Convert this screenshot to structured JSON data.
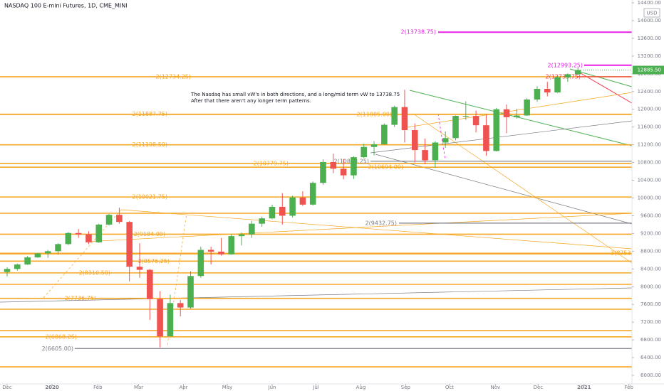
{
  "chart_data": {
    "type": "candlestick",
    "title": "NASDAQ 100 E-mini Futures, 1D, CME_MINI",
    "currency": "USD",
    "up_color": "#4caf50",
    "down_color": "#ef5350",
    "xlim": [
      -0.7,
      61.3
    ],
    "xticks": [
      {
        "value": 0,
        "label": "Dec"
      },
      {
        "value": 4.4,
        "label": "2020"
      },
      {
        "value": 8.9,
        "label": "Feb"
      },
      {
        "value": 12.9,
        "label": "Mar"
      },
      {
        "value": 17.3,
        "label": "Apr"
      },
      {
        "value": 21.6,
        "label": "May"
      },
      {
        "value": 26,
        "label": "Jun"
      },
      {
        "value": 30.3,
        "label": "Jul"
      },
      {
        "value": 34.7,
        "label": "Aug"
      },
      {
        "value": 39.1,
        "label": "Sep"
      },
      {
        "value": 43.4,
        "label": "Oct"
      },
      {
        "value": 47.9,
        "label": "Nov"
      },
      {
        "value": 52.1,
        "label": "Dec"
      },
      {
        "value": 56.6,
        "label": "2021"
      },
      {
        "value": 61,
        "label": "Feb"
      }
    ],
    "ylim": [
      5808,
      14464
    ],
    "yticks": [
      {
        "value": 6000,
        "label": "6000.00"
      },
      {
        "value": 6400,
        "label": "6400.00"
      },
      {
        "value": 6800,
        "label": "6800.00"
      },
      {
        "value": 7200,
        "label": "7200.00"
      },
      {
        "value": 7600,
        "label": "7600.00"
      },
      {
        "value": 8000,
        "label": "8000.00"
      },
      {
        "value": 8400,
        "label": "8400.00"
      },
      {
        "value": 8800,
        "label": "8800.00"
      },
      {
        "value": 9200,
        "label": "9200.00"
      },
      {
        "value": 9600,
        "label": "9600.00"
      },
      {
        "value": 10000,
        "label": "10000.00"
      },
      {
        "value": 10400,
        "label": "10400.00"
      },
      {
        "value": 10800,
        "label": "10800.00"
      },
      {
        "value": 11200,
        "label": "11200.00"
      },
      {
        "value": 11600,
        "label": "11600.00"
      },
      {
        "value": 12000,
        "label": "12000.00"
      },
      {
        "value": 12400,
        "label": "12400.00"
      },
      {
        "value": 12800,
        "label": "12800.00"
      },
      {
        "value": 13200,
        "label": "13200.00"
      },
      {
        "value": 13600,
        "label": "13600.00"
      },
      {
        "value": 14000,
        "label": "14000.00"
      },
      {
        "value": 14400,
        "label": "14400.00"
      }
    ],
    "open": [
      8330,
      8400,
      8500,
      8660,
      8750,
      8800,
      8960,
      9210,
      9180,
      9000,
      9400,
      9620,
      9460,
      8450,
      8380,
      7720,
      6880,
      7630,
      7530,
      8240,
      8830,
      8790,
      8730,
      9140,
      9180,
      9420,
      9540,
      9800,
      9600,
      10010,
      9850,
      10340,
      10810,
      10660,
      10510,
      10920,
      11150,
      11210,
      11650,
      12050,
      11530,
      11080,
      10850,
      11250,
      11350,
      11850,
      11850,
      11640,
      11060,
      12000,
      11820,
      11860,
      12220,
      12460,
      12380,
      12720,
      12790
    ],
    "high": [
      8440,
      8520,
      8690,
      8760,
      8830,
      8980,
      9230,
      9300,
      9250,
      9420,
      9640,
      9780,
      9480,
      8980,
      8400,
      7900,
      7820,
      7700,
      8350,
      8900,
      8900,
      9100,
      9180,
      9220,
      9480,
      9580,
      9850,
      10110,
      10050,
      10150,
      10370,
      10870,
      11000,
      10880,
      10940,
      11220,
      11280,
      11680,
      12080,
      12440,
      11680,
      11340,
      11280,
      11500,
      11860,
      12180,
      11970,
      11880,
      12030,
      12110,
      12010,
      12250,
      12520,
      12620,
      12750,
      12810,
      12940
    ],
    "low": [
      8230,
      8360,
      8490,
      8650,
      8650,
      8720,
      8940,
      9100,
      8960,
      8990,
      9380,
      9420,
      8120,
      8200,
      7250,
      6630,
      6900,
      7330,
      7500,
      8200,
      8500,
      8700,
      8720,
      8930,
      9100,
      9350,
      9520,
      9400,
      9560,
      9820,
      9830,
      10300,
      10560,
      10420,
      10430,
      10900,
      10960,
      11200,
      11600,
      11250,
      10800,
      10760,
      10680,
      11130,
      11300,
      11760,
      11480,
      10950,
      11050,
      11460,
      11790,
      11850,
      12170,
      12290,
      12370,
      12620,
      12770
    ],
    "close": [
      8400,
      8500,
      8660,
      8750,
      8800,
      8960,
      9210,
      9180,
      9000,
      9400,
      9620,
      9460,
      8450,
      8380,
      7720,
      6880,
      7630,
      7530,
      8240,
      8830,
      8790,
      8730,
      9140,
      9180,
      9420,
      9540,
      9800,
      9600,
      10010,
      9850,
      10340,
      10810,
      10660,
      10510,
      10920,
      11150,
      11210,
      11650,
      12050,
      11530,
      11080,
      10850,
      11250,
      11350,
      11850,
      11850,
      11640,
      11060,
      12000,
      11820,
      11860,
      12220,
      12460,
      12380,
      12720,
      12790,
      12885.5
    ],
    "last_price": {
      "value": 12885.5,
      "label": "12885.50"
    },
    "levels": [
      {
        "value": 13738.75,
        "label": "2(13738.75)",
        "color": "#e91ee6"
      },
      {
        "value": 12993.25,
        "label": "2(12993.25)",
        "color": "#e91ee6"
      },
      {
        "value": 12734.25,
        "label": "2(12734.25)",
        "color": "#f5a623"
      },
      {
        "value": 12733.75,
        "label": "2(12733.75)",
        "color": "#f23645"
      },
      {
        "value": 11887.75,
        "label": "2(11887.75)",
        "color": "#f5a623"
      },
      {
        "value": 11885.0,
        "label": "2(11885.00)",
        "color": "#f5a623"
      },
      {
        "value": 11198.5,
        "label": "2(11198.50)",
        "color": "#f5a623"
      },
      {
        "value": 10779.75,
        "label": "2(10779.75)",
        "color": "#f5a623"
      },
      {
        "value": 10828.25,
        "label": "2(10828.25)",
        "color": "#787b86"
      },
      {
        "value": 10694.0,
        "label": "2(10694.00)",
        "color": "#f5a623"
      },
      {
        "value": 10021.75,
        "label": "2(10021.75)",
        "color": "#f5a623"
      },
      {
        "value": 9655,
        "color": "#f5a623"
      },
      {
        "value": 9432.75,
        "label": "2(9432.75)",
        "color": "#787b86"
      },
      {
        "value": 9184.0,
        "label": "2(9184.00)",
        "color": "#f5a623"
      },
      {
        "value": 8753.5,
        "label": "3(8753.50)",
        "color": "#f5a623"
      },
      {
        "value": 8741,
        "color": "#f5a623"
      },
      {
        "value": 8576.25,
        "label": "2(8576.25)",
        "color": "#f5a623"
      },
      {
        "value": 8310.5,
        "label": "2(8310.50)",
        "color": "#f5a623"
      },
      {
        "value": 8052,
        "color": "#f5a623"
      },
      {
        "value": 7736.75,
        "label": "2(7736.75)",
        "color": "#f5a623"
      },
      {
        "value": 7491,
        "color": "#f5a623"
      },
      {
        "value": 7010,
        "color": "#f5a623"
      },
      {
        "value": 6868.25,
        "label": "2(6868.25)",
        "color": "#f5a623"
      },
      {
        "value": 6605.0,
        "label": "2(6605.00)",
        "color": "#787b86"
      },
      {
        "value": 6192,
        "color": "#f5a623"
      }
    ],
    "note": [
      "The Nasdaq has small vW's in both directions, and a long/mid term vW to 13738.75",
      "After that there aren't any longer term patterns."
    ]
  }
}
